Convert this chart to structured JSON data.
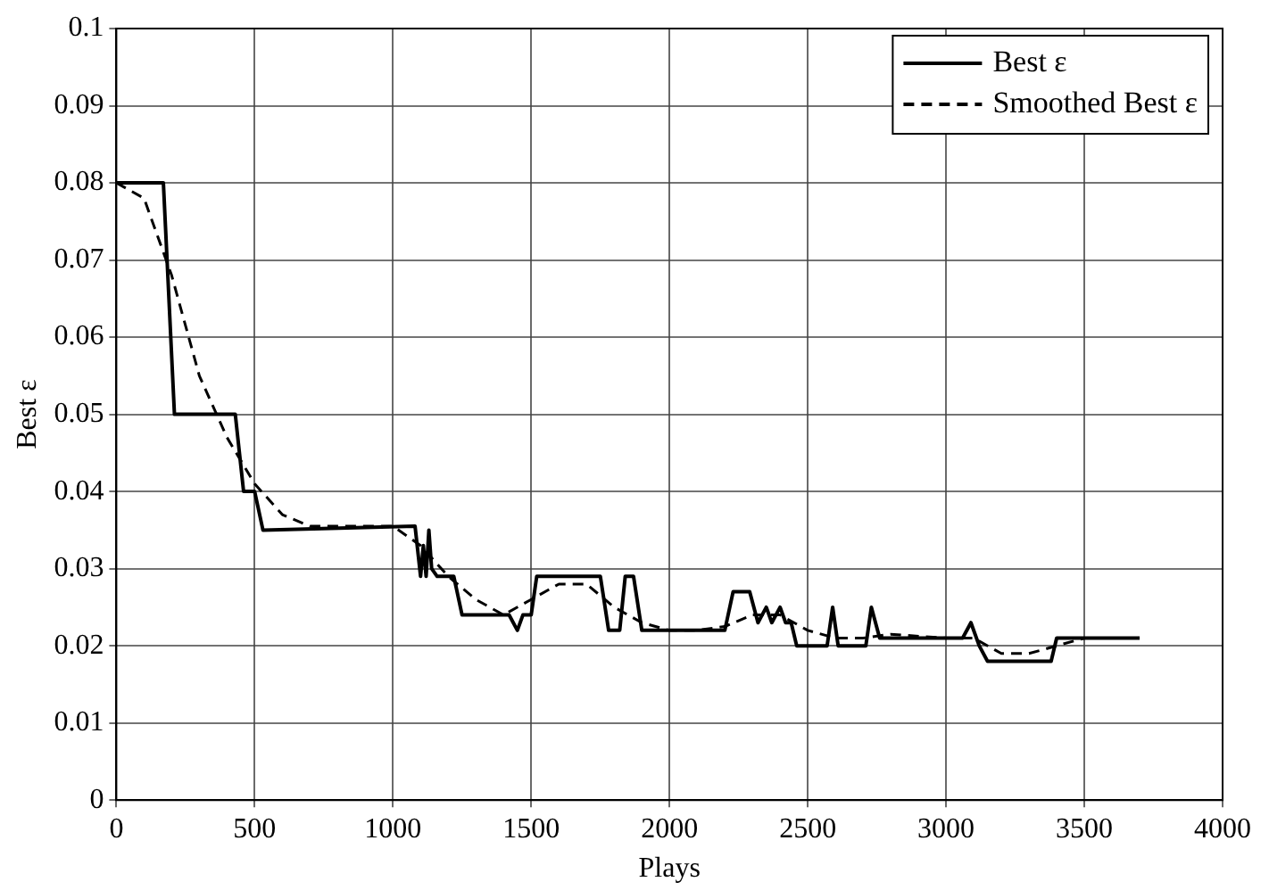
{
  "chart_data": {
    "type": "line",
    "xlabel": "Plays",
    "ylabel": "Best ε",
    "xlim": [
      0,
      4000
    ],
    "xticks": [
      0,
      500,
      1000,
      1500,
      2000,
      2500,
      3000,
      3500,
      4000
    ],
    "ylim": [
      0,
      0.1
    ],
    "yticks": [
      0,
      0.01,
      0.02,
      0.03,
      0.04,
      0.05,
      0.06,
      0.07,
      0.08,
      0.09,
      0.1
    ],
    "grid": true,
    "legend": "top right",
    "marker": "none",
    "series": [
      {
        "name": "Best ε",
        "color": "#000000",
        "line_style": "solid",
        "x": [
          0,
          170,
          210,
          430,
          460,
          500,
          530,
          1080,
          1100,
          1110,
          1120,
          1130,
          1140,
          1160,
          1220,
          1250,
          1420,
          1450,
          1470,
          1500,
          1520,
          1750,
          1780,
          1820,
          1840,
          1870,
          1900,
          2200,
          2230,
          2290,
          2320,
          2350,
          2370,
          2400,
          2420,
          2440,
          2460,
          2570,
          2590,
          2610,
          2710,
          2730,
          2760,
          3060,
          3090,
          3120,
          3150,
          3380,
          3400,
          3700
        ],
        "values": [
          0.08,
          0.08,
          0.05,
          0.05,
          0.04,
          0.04,
          0.035,
          0.0355,
          0.029,
          0.033,
          0.029,
          0.035,
          0.03,
          0.029,
          0.029,
          0.024,
          0.024,
          0.022,
          0.024,
          0.024,
          0.029,
          0.029,
          0.022,
          0.022,
          0.029,
          0.029,
          0.022,
          0.022,
          0.027,
          0.027,
          0.023,
          0.025,
          0.023,
          0.025,
          0.023,
          0.023,
          0.02,
          0.02,
          0.025,
          0.02,
          0.02,
          0.025,
          0.021,
          0.021,
          0.023,
          0.02,
          0.018,
          0.018,
          0.021,
          0.021
        ]
      },
      {
        "name": "Smoothed Best ε",
        "color": "#000000",
        "line_style": "dashed",
        "x": [
          0,
          100,
          200,
          300,
          400,
          500,
          600,
          700,
          1000,
          1100,
          1200,
          1300,
          1400,
          1500,
          1600,
          1700,
          1800,
          1900,
          2000,
          2100,
          2200,
          2300,
          2400,
          2500,
          2600,
          2700,
          2800,
          3000,
          3100,
          3200,
          3300,
          3400,
          3500,
          3700
        ],
        "values": [
          0.08,
          0.078,
          0.068,
          0.055,
          0.047,
          0.041,
          0.037,
          0.0355,
          0.0355,
          0.033,
          0.029,
          0.026,
          0.024,
          0.026,
          0.028,
          0.028,
          0.025,
          0.023,
          0.022,
          0.022,
          0.0225,
          0.024,
          0.024,
          0.022,
          0.021,
          0.021,
          0.0215,
          0.021,
          0.021,
          0.019,
          0.019,
          0.02,
          0.021,
          0.021
        ]
      }
    ]
  }
}
